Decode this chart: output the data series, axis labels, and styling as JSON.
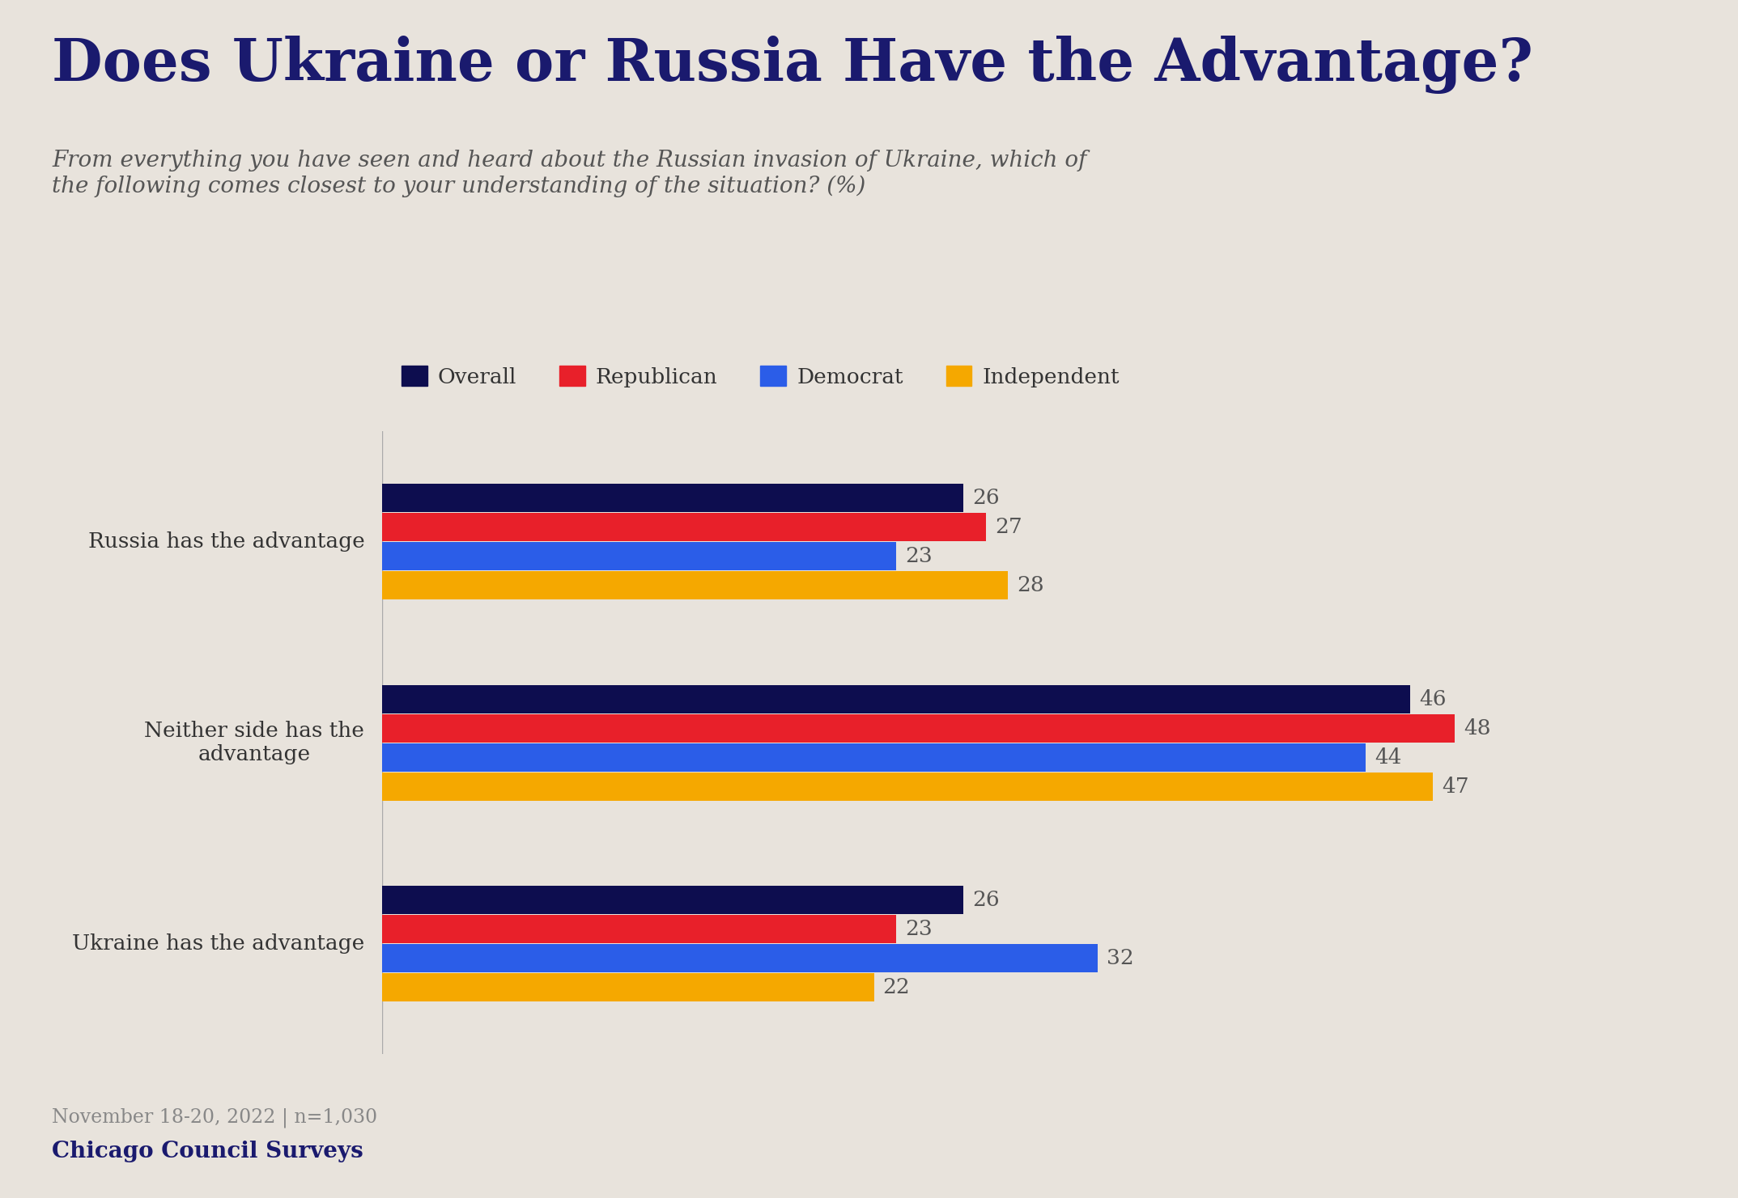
{
  "title": "Does Ukraine or Russia Have the Advantage?",
  "subtitle": "From everything you have seen and heard about the Russian invasion of Ukraine, which of\nthe following comes closest to your understanding of the situation? (%)",
  "background_color": "#e8e3dc",
  "categories": [
    "Russia has the advantage",
    "Neither side has the\nadvantage",
    "Ukraine has the advantage"
  ],
  "series_names": [
    "Overall",
    "Republican",
    "Democrat",
    "Independent"
  ],
  "series_values": [
    [
      26,
      27,
      23,
      28
    ],
    [
      46,
      48,
      44,
      47
    ],
    [
      26,
      23,
      32,
      22
    ]
  ],
  "colors": [
    "#0d0d4f",
    "#e8202a",
    "#2b5de8",
    "#f5a800"
  ],
  "xlim": [
    0,
    56
  ],
  "footnote": "November 18-20, 2022 | n=1,030",
  "source": "Chicago Council Surveys",
  "title_color": "#1a1a6e",
  "subtitle_color": "#555555",
  "value_color": "#555555"
}
